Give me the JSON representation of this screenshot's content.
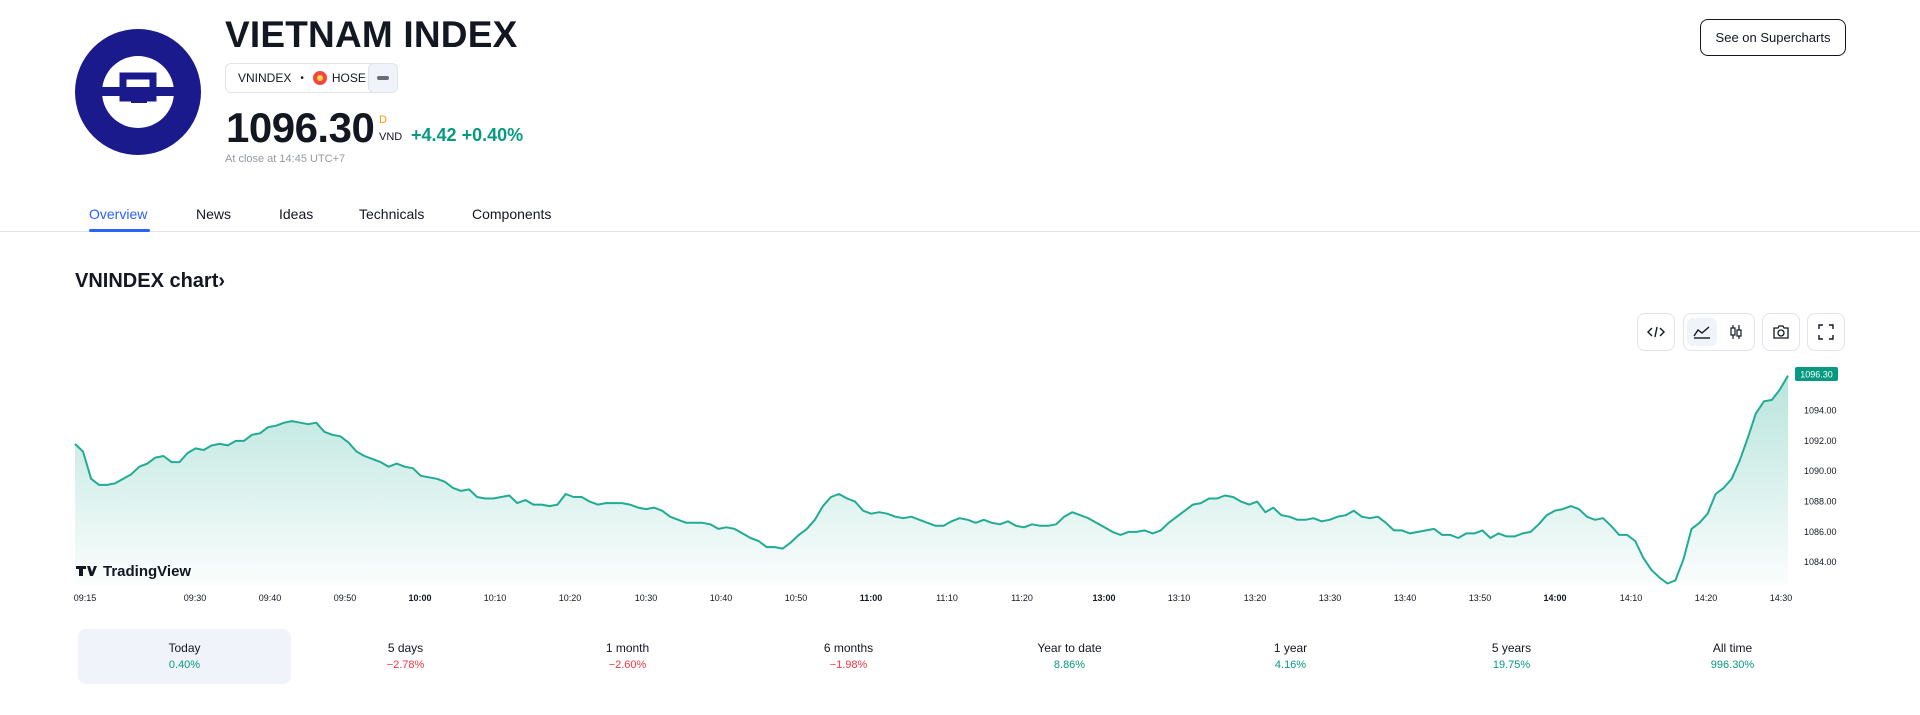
{
  "header": {
    "title": "VIETNAM INDEX",
    "symbol": "VNINDEX",
    "exchange": "HOSE",
    "price": "1096.30",
    "market_status": "D",
    "currency": "VND",
    "change_abs": "+4.42",
    "change_pct": "+0.40%",
    "close_note": "At close at 14:45 UTC+7",
    "supercharts_label": "See on Supercharts"
  },
  "tabs": [
    {
      "label": "Overview",
      "active": true
    },
    {
      "label": "News"
    },
    {
      "label": "Ideas"
    },
    {
      "label": "Technicals"
    },
    {
      "label": "Components"
    }
  ],
  "chart_section": {
    "title": "VNINDEX chart",
    "chevron": "›",
    "watermark": "TradingView",
    "tools": [
      "embed-icon",
      "area-chart-icon",
      "candles-icon",
      "camera-icon",
      "fullscreen-icon"
    ]
  },
  "chart_data": {
    "type": "area",
    "x_ticks": [
      "09:15",
      "09:30",
      "09:40",
      "09:50",
      "10:00",
      "10:10",
      "10:20",
      "10:30",
      "10:40",
      "10:50",
      "11:00",
      "11:10",
      "11:20",
      "13:00",
      "13:10",
      "13:20",
      "13:30",
      "13:40",
      "13:50",
      "14:00",
      "14:10",
      "14:20",
      "14:30"
    ],
    "x_ticks_bold": [
      "10:00",
      "11:00",
      "13:00",
      "14:00"
    ],
    "y_ticks": [
      "1084.00",
      "1086.00",
      "1088.00",
      "1090.00",
      "1092.00",
      "1094.00"
    ],
    "ylim": [
      1082.5,
      1097.0
    ],
    "last_value_label": "1096.30",
    "values": [
      1091.8,
      1091.3,
      1089.5,
      1089.1,
      1089.1,
      1089.2,
      1089.5,
      1089.8,
      1090.3,
      1090.5,
      1090.9,
      1091.0,
      1090.6,
      1090.6,
      1091.2,
      1091.5,
      1091.4,
      1091.7,
      1091.8,
      1091.7,
      1092.0,
      1092.0,
      1092.4,
      1092.5,
      1092.9,
      1093.0,
      1093.2,
      1093.3,
      1093.2,
      1093.1,
      1093.2,
      1092.6,
      1092.4,
      1092.3,
      1091.9,
      1091.3,
      1091.0,
      1090.8,
      1090.6,
      1090.3,
      1090.5,
      1090.3,
      1090.2,
      1089.7,
      1089.6,
      1089.5,
      1089.3,
      1088.9,
      1088.7,
      1088.8,
      1088.3,
      1088.2,
      1088.2,
      1088.3,
      1088.4,
      1087.9,
      1088.1,
      1087.8,
      1087.8,
      1087.7,
      1087.8,
      1088.5,
      1088.3,
      1088.3,
      1088.0,
      1087.8,
      1087.9,
      1087.9,
      1087.9,
      1087.8,
      1087.6,
      1087.5,
      1087.6,
      1087.4,
      1087.0,
      1086.8,
      1086.6,
      1086.6,
      1086.6,
      1086.5,
      1086.2,
      1086.3,
      1086.2,
      1085.9,
      1085.6,
      1085.4,
      1085.0,
      1085.0,
      1084.9,
      1085.3,
      1085.8,
      1086.2,
      1086.8,
      1087.7,
      1088.3,
      1088.5,
      1088.2,
      1088.0,
      1087.4,
      1087.2,
      1087.3,
      1087.2,
      1087.0,
      1086.9,
      1087.0,
      1086.8,
      1086.6,
      1086.4,
      1086.4,
      1086.7,
      1086.9,
      1086.8,
      1086.6,
      1086.8,
      1086.6,
      1086.5,
      1086.7,
      1086.4,
      1086.3,
      1086.5,
      1086.4,
      1086.4,
      1086.5,
      1087.0,
      1087.3,
      1087.1,
      1086.9,
      1086.6,
      1086.3,
      1086.0,
      1085.8,
      1086.0,
      1086.0,
      1086.1,
      1085.9,
      1086.1,
      1086.6,
      1087.0,
      1087.4,
      1087.8,
      1087.9,
      1088.2,
      1088.2,
      1088.4,
      1088.3,
      1088.0,
      1087.8,
      1088.0,
      1087.3,
      1087.6,
      1087.1,
      1087.0,
      1086.8,
      1086.8,
      1086.9,
      1086.7,
      1086.8,
      1087.0,
      1087.1,
      1087.4,
      1087.0,
      1086.9,
      1087.0,
      1086.6,
      1086.1,
      1086.1,
      1085.9,
      1086.0,
      1086.1,
      1086.2,
      1085.8,
      1085.8,
      1085.6,
      1085.9,
      1085.9,
      1086.1,
      1085.6,
      1085.9,
      1085.7,
      1085.7,
      1085.9,
      1086.0,
      1086.5,
      1087.1,
      1087.4,
      1087.5,
      1087.7,
      1087.5,
      1087.0,
      1086.8,
      1086.9,
      1086.4,
      1085.8,
      1085.8,
      1085.4,
      1084.3,
      1083.5,
      1083.0,
      1082.6,
      1082.8,
      1084.2,
      1086.2,
      1086.6,
      1087.2,
      1088.5,
      1088.9,
      1089.5,
      1090.7,
      1092.2,
      1093.8,
      1094.6,
      1094.7,
      1095.4,
      1096.3
    ]
  },
  "periods": [
    {
      "label": "Today",
      "value": "0.40%",
      "sign": "pos",
      "active": true
    },
    {
      "label": "5 days",
      "value": "−2.78%",
      "sign": "neg"
    },
    {
      "label": "1 month",
      "value": "−2.60%",
      "sign": "neg"
    },
    {
      "label": "6 months",
      "value": "−1.98%",
      "sign": "neg"
    },
    {
      "label": "Year to date",
      "value": "8.86%",
      "sign": "pos"
    },
    {
      "label": "1 year",
      "value": "4.16%",
      "sign": "pos"
    },
    {
      "label": "5 years",
      "value": "19.75%",
      "sign": "pos"
    },
    {
      "label": "All time",
      "value": "996.30%",
      "sign": "pos"
    }
  ],
  "colors": {
    "accent": "#2962ff",
    "positive": "#089981",
    "negative": "#f23645",
    "logo_bg": "#1a1a8c",
    "line": "#22ab94"
  }
}
